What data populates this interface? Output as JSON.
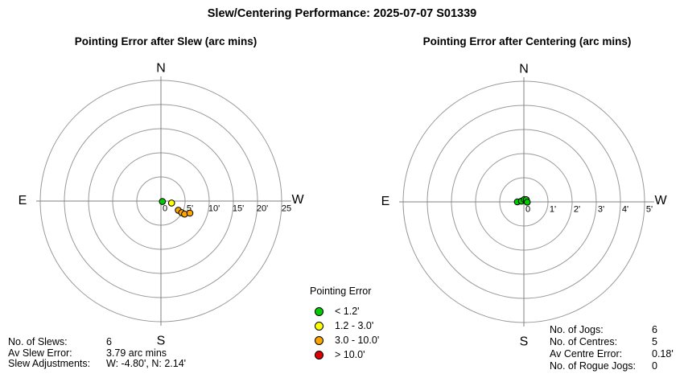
{
  "title": "Slew/Centering Performance: 2025-07-07 S01339",
  "colors": {
    "green": "#00CC00",
    "yellow": "#FFFF00",
    "orange": "#FFA500",
    "red": "#DD0000",
    "grid": "#999999",
    "axis": "#808080",
    "text": "#000000"
  },
  "legend": {
    "title": "Pointing Error",
    "items": [
      {
        "color": "green",
        "label": "< 1.2'"
      },
      {
        "color": "yellow",
        "label": "1.2 - 3.0'"
      },
      {
        "color": "orange",
        "label": "3.0 - 10.0'"
      },
      {
        "color": "red",
        "label": "> 10.0'"
      }
    ]
  },
  "stats_left": {
    "rows": [
      {
        "label": "No. of Slews:",
        "value": "6"
      },
      {
        "label": "Av Slew Error:",
        "value": "3.79 arc mins"
      },
      {
        "label": "Slew Adjustments:",
        "value": "W: -4.80', N: 2.14'"
      }
    ]
  },
  "stats_right": {
    "rows": [
      {
        "label": "No. of Jogs:",
        "value": "6"
      },
      {
        "label": "No. of Centres:",
        "value": "5"
      },
      {
        "label": "Av Centre Error:",
        "value": "0.18'"
      },
      {
        "label": "No. of Rogue Jogs:",
        "value": "0"
      }
    ]
  },
  "chart_data": [
    {
      "type": "scatter",
      "variant": "polar",
      "title": "Pointing Error after Slew (arc mins)",
      "units": "arc mins",
      "compass": {
        "n": "N",
        "e": "E",
        "s": "S",
        "w": "W"
      },
      "max_arcmin": 25,
      "rings_arcmin": [
        5,
        10,
        15,
        20,
        25
      ],
      "tick_labels": [
        "0",
        "5'",
        "10'",
        "15'",
        "20'",
        "25"
      ],
      "points": [
        {
          "w": 0.3,
          "n": -0.1,
          "band": "green"
        },
        {
          "w": 2.2,
          "n": -0.4,
          "band": "yellow"
        },
        {
          "w": 3.6,
          "n": -1.9,
          "band": "orange"
        },
        {
          "w": 4.3,
          "n": -2.4,
          "band": "orange"
        },
        {
          "w": 4.9,
          "n": -2.7,
          "band": "orange"
        },
        {
          "w": 6.0,
          "n": -2.5,
          "band": "orange"
        }
      ]
    },
    {
      "type": "scatter",
      "variant": "polar",
      "title": "Pointing Error after Centering (arc mins)",
      "units": "arc mins",
      "compass": {
        "n": "N",
        "e": "E",
        "s": "S",
        "w": "W"
      },
      "max_arcmin": 5,
      "rings_arcmin": [
        1,
        2,
        3,
        4,
        5
      ],
      "tick_labels": [
        "0",
        "1'",
        "2'",
        "3'",
        "4'",
        "5'"
      ],
      "points": [
        {
          "w": -0.27,
          "n": 0.0,
          "band": "green"
        },
        {
          "w": -0.1,
          "n": 0.03,
          "band": "green"
        },
        {
          "w": 0.02,
          "n": 0.1,
          "band": "green"
        },
        {
          "w": 0.1,
          "n": 0.09,
          "band": "green"
        },
        {
          "w": 0.14,
          "n": -0.01,
          "band": "green"
        }
      ]
    }
  ]
}
